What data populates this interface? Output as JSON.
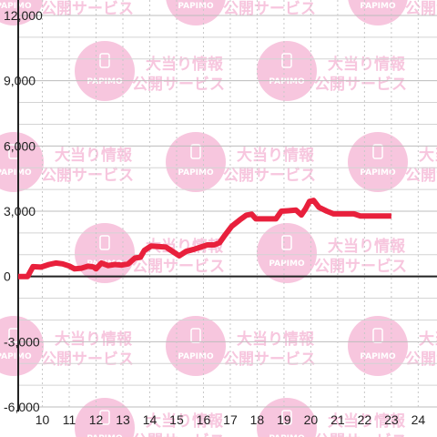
{
  "watermark": {
    "line1": "大当り情報",
    "line2": "公開サービス",
    "logo_text": "PAPIMO",
    "color": "#f7c6de"
  },
  "chart_data": {
    "type": "line",
    "title": "",
    "xlabel": "",
    "ylabel": "",
    "x_ticks": [
      "10",
      "11",
      "12",
      "13",
      "14",
      "15",
      "16",
      "17",
      "18",
      "19",
      "20",
      "21",
      "22",
      "23",
      "24"
    ],
    "y_ticks": [
      "12,000",
      "9,000",
      "6,000",
      "3,000",
      "0",
      "-3,000",
      "-6,000"
    ],
    "y_tick_values": [
      12000,
      9000,
      6000,
      3000,
      0,
      -3000,
      -6000
    ],
    "xlim": [
      9.1,
      24.7
    ],
    "ylim": [
      -6000,
      12000
    ],
    "grid": true,
    "series": [
      {
        "color": "#e8203c",
        "points": [
          [
            9.1,
            0
          ],
          [
            9.45,
            0
          ],
          [
            9.65,
            450
          ],
          [
            9.95,
            430
          ],
          [
            10.25,
            550
          ],
          [
            10.5,
            620
          ],
          [
            10.75,
            580
          ],
          [
            11.0,
            480
          ],
          [
            11.2,
            350
          ],
          [
            11.45,
            380
          ],
          [
            11.7,
            470
          ],
          [
            11.9,
            440
          ],
          [
            12.0,
            350
          ],
          [
            12.2,
            620
          ],
          [
            12.45,
            500
          ],
          [
            12.7,
            550
          ],
          [
            12.95,
            520
          ],
          [
            13.2,
            580
          ],
          [
            13.45,
            850
          ],
          [
            13.65,
            880
          ],
          [
            13.8,
            1200
          ],
          [
            14.05,
            1400
          ],
          [
            14.3,
            1380
          ],
          [
            14.6,
            1350
          ],
          [
            14.85,
            1150
          ],
          [
            15.1,
            950
          ],
          [
            15.35,
            1150
          ],
          [
            15.65,
            1250
          ],
          [
            15.9,
            1350
          ],
          [
            16.15,
            1450
          ],
          [
            16.4,
            1450
          ],
          [
            16.6,
            1550
          ],
          [
            16.8,
            1900
          ],
          [
            17.05,
            2300
          ],
          [
            17.35,
            2600
          ],
          [
            17.6,
            2820
          ],
          [
            17.8,
            2860
          ],
          [
            17.95,
            2650
          ],
          [
            18.15,
            2650
          ],
          [
            18.45,
            2650
          ],
          [
            18.7,
            2650
          ],
          [
            18.9,
            3000
          ],
          [
            19.15,
            3020
          ],
          [
            19.45,
            3050
          ],
          [
            19.65,
            2830
          ],
          [
            19.8,
            3100
          ],
          [
            19.95,
            3450
          ],
          [
            20.1,
            3500
          ],
          [
            20.3,
            3180
          ],
          [
            20.6,
            3000
          ],
          [
            20.85,
            2880
          ],
          [
            21.1,
            2880
          ],
          [
            21.35,
            2880
          ],
          [
            21.6,
            2880
          ],
          [
            21.85,
            2780
          ],
          [
            22.1,
            2780
          ],
          [
            22.4,
            2780
          ],
          [
            22.7,
            2780
          ],
          [
            23.0,
            2780
          ]
        ]
      }
    ]
  }
}
